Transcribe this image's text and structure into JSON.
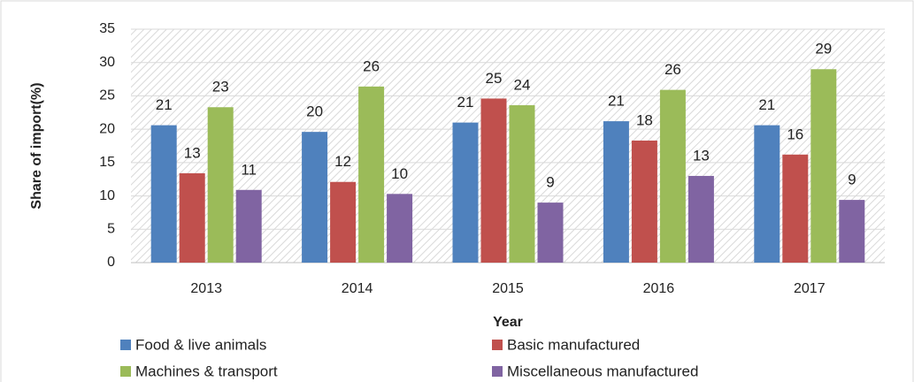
{
  "chart_data": {
    "type": "bar",
    "x_label": "Year",
    "y_label": "Share of import(%)",
    "categories": [
      "2013",
      "2014",
      "2015",
      "2016",
      "2017"
    ],
    "series": [
      {
        "name": "Food & live animals",
        "color": "#4f81bd",
        "values": [
          20.6,
          19.6,
          21.0,
          21.2,
          20.6
        ],
        "value_labels": [
          "21",
          "20",
          "21",
          "21",
          "21"
        ]
      },
      {
        "name": "Basic manufactured",
        "color": "#c0504d",
        "values": [
          13.4,
          12.1,
          24.6,
          18.3,
          16.2
        ],
        "value_labels": [
          "13",
          "12",
          "25",
          "18",
          "16"
        ]
      },
      {
        "name": "Machines & transport",
        "color": "#9bbb59",
        "values": [
          23.3,
          26.4,
          23.6,
          25.9,
          29.0
        ],
        "value_labels": [
          "23",
          "26",
          "24",
          "26",
          "29"
        ]
      },
      {
        "name": "Miscellaneous manufactured",
        "color": "#8064a2",
        "values": [
          10.9,
          10.3,
          9.0,
          13.0,
          9.4
        ],
        "value_labels": [
          "11",
          "10",
          "9",
          "13",
          "9"
        ]
      }
    ],
    "ylim": [
      0,
      35
    ],
    "yticks": [
      0,
      5,
      10,
      15,
      20,
      25,
      30,
      35
    ],
    "grid": true
  }
}
